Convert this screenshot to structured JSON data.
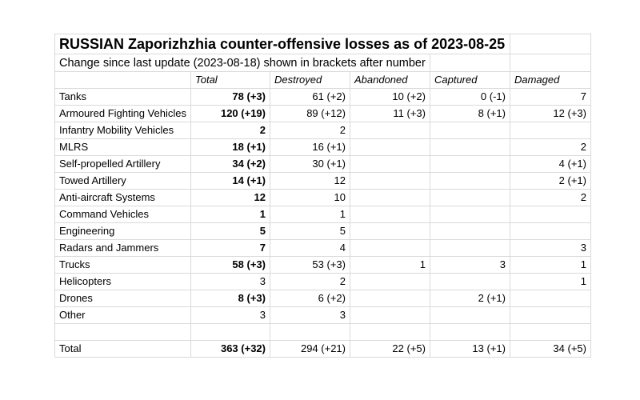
{
  "title": "RUSSIAN Zaporizhzhia counter-offensive losses as of 2023-08-25",
  "subtitle": "Change since last update (2023-08-18) shown in brackets after number",
  "columns": [
    "Total",
    "Destroyed",
    "Abandoned",
    "Captured",
    "Damaged"
  ],
  "rows": [
    {
      "label": "Tanks",
      "total": "78 (+3)",
      "total_bold": true,
      "destroyed": "61 (+2)",
      "abandoned": "10 (+2)",
      "captured": "0 (-1)",
      "damaged": "7"
    },
    {
      "label": "Armoured Fighting Vehicles",
      "total": "120 (+19)",
      "total_bold": true,
      "destroyed": "89 (+12)",
      "abandoned": "11 (+3)",
      "captured": "8 (+1)",
      "damaged": "12 (+3)"
    },
    {
      "label": "Infantry Mobility Vehicles",
      "total": "2",
      "total_bold": true,
      "destroyed": "2",
      "abandoned": "",
      "captured": "",
      "damaged": ""
    },
    {
      "label": "MLRS",
      "total": "18 (+1)",
      "total_bold": true,
      "destroyed": "16 (+1)",
      "abandoned": "",
      "captured": "",
      "damaged": "2"
    },
    {
      "label": "Self-propelled Artillery",
      "total": "34 (+2)",
      "total_bold": true,
      "destroyed": "30 (+1)",
      "abandoned": "",
      "captured": "",
      "damaged": "4 (+1)"
    },
    {
      "label": "Towed Artillery",
      "total": "14 (+1)",
      "total_bold": true,
      "destroyed": "12",
      "abandoned": "",
      "captured": "",
      "damaged": "2 (+1)"
    },
    {
      "label": "Anti-aircraft Systems",
      "total": "12",
      "total_bold": true,
      "destroyed": "10",
      "abandoned": "",
      "captured": "",
      "damaged": "2"
    },
    {
      "label": "Command Vehicles",
      "total": "1",
      "total_bold": true,
      "destroyed": "1",
      "abandoned": "",
      "captured": "",
      "damaged": ""
    },
    {
      "label": "Engineering",
      "total": "5",
      "total_bold": true,
      "destroyed": "5",
      "abandoned": "",
      "captured": "",
      "damaged": ""
    },
    {
      "label": "Radars and Jammers",
      "total": "7",
      "total_bold": true,
      "destroyed": "4",
      "abandoned": "",
      "captured": "",
      "damaged": "3"
    },
    {
      "label": "Trucks",
      "total": "58 (+3)",
      "total_bold": true,
      "destroyed": "53 (+3)",
      "abandoned": "1",
      "captured": "3",
      "damaged": "1"
    },
    {
      "label": "Helicopters",
      "total": "3",
      "total_bold": false,
      "destroyed": "2",
      "abandoned": "",
      "captured": "",
      "damaged": "1"
    },
    {
      "label": "Drones",
      "total": "8 (+3)",
      "total_bold": true,
      "destroyed": "6 (+2)",
      "abandoned": "",
      "captured": "2 (+1)",
      "damaged": ""
    },
    {
      "label": "Other",
      "total": "3",
      "total_bold": false,
      "destroyed": "3",
      "abandoned": "",
      "captured": "",
      "damaged": ""
    }
  ],
  "total_row": {
    "label": "Total",
    "total": "363 (+32)",
    "destroyed": "294 (+21)",
    "abandoned": "22 (+5)",
    "captured": "13 (+1)",
    "damaged": "34 (+5)"
  }
}
